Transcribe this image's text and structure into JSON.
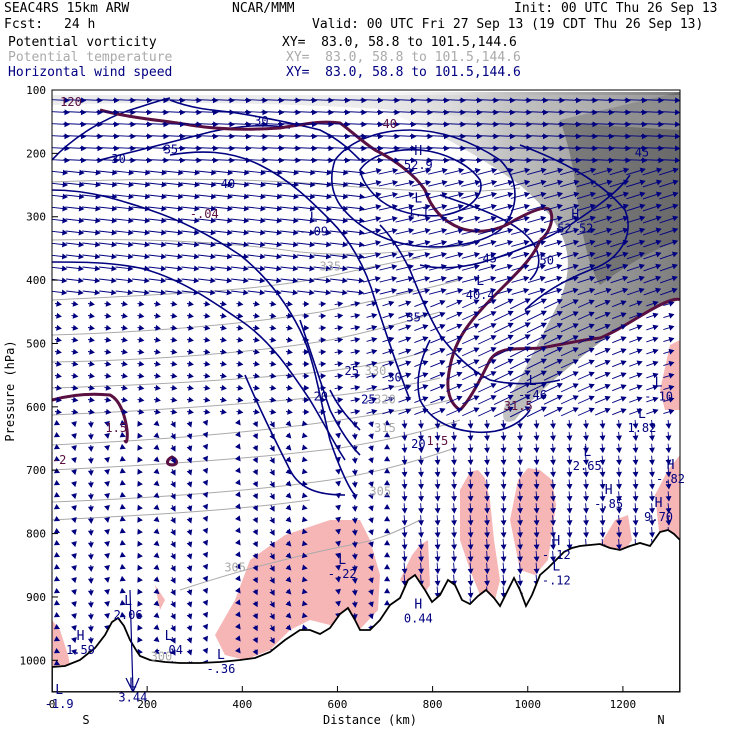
{
  "header": {
    "model": "SEAC4RS 15km ARW",
    "org": "NCAR/MMM",
    "init": "Init: 00 UTC Thu 26 Sep 13",
    "fcst_label": "Fcst:",
    "fcst_value": "24 h",
    "valid": "Valid: 00 UTC Fri 27 Sep 13 (19 CDT Thu 26 Sep 13)",
    "fields": [
      {
        "name": "Potential vorticity",
        "xy": "XY=  83.0, 58.8 to 101.5,144.6",
        "color": "#000000"
      },
      {
        "name": "Potential temperature",
        "xy": "XY=  83.0, 58.8 to 101.5,144.6",
        "color": "#aaaaaa"
      },
      {
        "name": "Horizontal wind speed",
        "xy": "XY=  83.0, 58.8 to 101.5,144.6",
        "color": "#000080"
      }
    ]
  },
  "chart_data": {
    "type": "contour-cross-section",
    "xlabel": "Distance (km)",
    "ylabel": "Pressure (hPa)",
    "xlim": [
      0,
      1320
    ],
    "ylim": [
      1050,
      100
    ],
    "xticks": [
      0,
      200,
      400,
      600,
      800,
      1000,
      1200
    ],
    "yticks": [
      100,
      200,
      300,
      400,
      500,
      600,
      700,
      800,
      900,
      1000
    ],
    "x_end_labels": {
      "left": "S",
      "right": "N"
    },
    "colors": {
      "wind_speed": "#000080",
      "theta": "#aaaaaa",
      "pv_zero": "#5a1040",
      "pv_positive_fill": "#7a7a7a",
      "pv_negative_fill": "#f7b6b6",
      "terrain": "#000000"
    },
    "wind_speed_labels": [
      {
        "x": 440,
        "p": 155,
        "text": "30"
      },
      {
        "x": 140,
        "p": 215,
        "text": "30"
      },
      {
        "x": 250,
        "p": 200,
        "text": "35"
      },
      {
        "x": 370,
        "p": 255,
        "text": "40"
      },
      {
        "x": 1240,
        "p": 205,
        "text": "45"
      },
      {
        "x": 920,
        "p": 372,
        "text": "45"
      },
      {
        "x": 1040,
        "p": 375,
        "text": "50"
      },
      {
        "x": 760,
        "p": 465,
        "text": "35"
      },
      {
        "x": 630,
        "p": 550,
        "text": "25"
      },
      {
        "x": 720,
        "p": 560,
        "text": "30"
      },
      {
        "x": 665,
        "p": 595,
        "text": "25"
      },
      {
        "x": 565,
        "p": 590,
        "text": "20"
      },
      {
        "x": 770,
        "p": 665,
        "text": "20"
      }
    ],
    "theta_labels": [
      {
        "x": 585,
        "p": 385,
        "text": "335"
      },
      {
        "x": 680,
        "p": 550,
        "text": "330"
      },
      {
        "x": 700,
        "p": 595,
        "text": "320"
      },
      {
        "x": 700,
        "p": 640,
        "text": "315"
      },
      {
        "x": 690,
        "p": 740,
        "text": "305"
      },
      {
        "x": 385,
        "p": 860,
        "text": "305"
      },
      {
        "x": 230,
        "p": 1000,
        "text": "300"
      }
    ],
    "pv_labels": [
      {
        "x": 40,
        "p": 125,
        "text": "120"
      },
      {
        "x": 710,
        "p": 160,
        "text": "40"
      },
      {
        "x": 320,
        "p": 302,
        "text": "-.04"
      },
      {
        "x": 135,
        "p": 640,
        "text": "1.5"
      },
      {
        "x": 15,
        "p": 690,
        "text": "-2"
      },
      {
        "x": 980,
        "p": 605,
        "text": "31.5"
      },
      {
        "x": 810,
        "p": 660,
        "text": "1.5"
      }
    ],
    "extrema": [
      {
        "x": 770,
        "p": 225,
        "kind": "H",
        "value": "52.9"
      },
      {
        "x": 770,
        "p": 300,
        "kind": "L",
        "value": "1.1"
      },
      {
        "x": 1100,
        "p": 325,
        "kind": "H",
        "value": "52.52"
      },
      {
        "x": 550,
        "p": 330,
        "kind": "L",
        "value": "-.09"
      },
      {
        "x": 900,
        "p": 430,
        "kind": "L",
        "value": "40.4"
      },
      {
        "x": 1010,
        "p": 588,
        "kind": "L",
        "value": "-.46"
      },
      {
        "x": 1275,
        "p": 590,
        "kind": "L",
        "value": "-.10"
      },
      {
        "x": 1240,
        "p": 640,
        "kind": "L",
        "value": "1.82"
      },
      {
        "x": 1125,
        "p": 700,
        "kind": "L",
        "value": "2.65"
      },
      {
        "x": 1300,
        "p": 720,
        "kind": "H",
        "value": "-.82"
      },
      {
        "x": 1170,
        "p": 760,
        "kind": "H",
        "value": "-.85"
      },
      {
        "x": 1275,
        "p": 780,
        "kind": "H",
        "value": "9.70"
      },
      {
        "x": 1060,
        "p": 840,
        "kind": "H",
        "value": "-.12"
      },
      {
        "x": 1060,
        "p": 880,
        "kind": "L",
        "value": "-.12"
      },
      {
        "x": 610,
        "p": 870,
        "kind": "L",
        "value": "-.22"
      },
      {
        "x": 770,
        "p": 940,
        "kind": "H",
        "value": "0.44"
      },
      {
        "x": 160,
        "p": 935,
        "kind": "L",
        "value": "2.06"
      },
      {
        "x": 60,
        "p": 990,
        "kind": "H",
        "value": "1.59"
      },
      {
        "x": 245,
        "p": 990,
        "kind": "L",
        "value": "-.04"
      },
      {
        "x": 355,
        "p": 1020,
        "kind": "L",
        "value": "-.36"
      },
      {
        "x": 170,
        "p": 1065,
        "kind": "L",
        "value": "3.44"
      },
      {
        "x": 15,
        "p": 1075,
        "kind": "L",
        "value": "-1.9"
      }
    ]
  }
}
